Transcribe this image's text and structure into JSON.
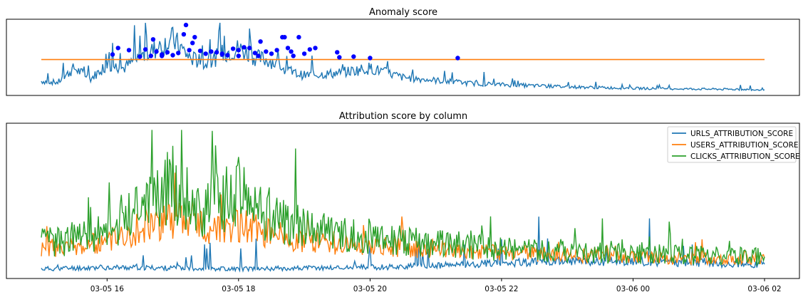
{
  "chart_data": [
    {
      "type": "line",
      "title": "Anomaly score",
      "xlabel": "",
      "ylabel": "",
      "x_range": [
        "2024-03-05 15:00",
        "2024-03-06 02:00"
      ],
      "yaxis_visible": false,
      "xaxis_ticks_visible": false,
      "ylim": [
        0,
        1
      ],
      "threshold": 0.47,
      "colors": {
        "score": "#1f77b4",
        "threshold": "#ff7f0e",
        "anomaly_marker": "#0000ff"
      },
      "series": [
        {
          "key": "score",
          "points": [
            [
              "03-05 15:00",
              0.17
            ],
            [
              "03-05 15:15",
              0.15
            ],
            [
              "03-05 15:30",
              0.35
            ],
            [
              "03-05 15:45",
              0.2
            ],
            [
              "03-05 16:00",
              0.4
            ],
            [
              "03-05 16:15",
              0.35
            ],
            [
              "03-05 16:30",
              0.5
            ],
            [
              "03-05 16:45",
              0.62
            ],
            [
              "03-05 17:00",
              0.75
            ],
            [
              "03-05 17:15",
              0.5
            ],
            [
              "03-05 17:30",
              0.4
            ],
            [
              "03-05 17:45",
              0.55
            ],
            [
              "03-05 18:00",
              0.62
            ],
            [
              "03-05 18:15",
              0.5
            ],
            [
              "03-05 18:30",
              0.45
            ],
            [
              "03-05 18:45",
              0.3
            ],
            [
              "03-05 19:00",
              0.25
            ],
            [
              "03-05 19:30",
              0.28
            ],
            [
              "03-05 20:00",
              0.35
            ],
            [
              "03-05 20:30",
              0.22
            ],
            [
              "03-05 21:00",
              0.18
            ],
            [
              "03-05 21:30",
              0.14
            ],
            [
              "03-05 22:00",
              0.12
            ],
            [
              "03-05 23:00",
              0.09
            ],
            [
              "03-06 00:00",
              0.07
            ],
            [
              "03-06 01:00",
              0.06
            ],
            [
              "03-06 02:00",
              0.05
            ]
          ]
        },
        {
          "key": "threshold",
          "points": [
            [
              "03-05 15:00",
              0.47
            ],
            [
              "03-06 02:00",
              0.47
            ]
          ]
        }
      ],
      "anomalies": [
        [
          "03-05 16:05",
          0.54
        ],
        [
          "03-05 16:10",
          0.63
        ],
        [
          "03-05 16:20",
          0.6
        ],
        [
          "03-05 16:35",
          0.61
        ],
        [
          "03-05 16:40",
          0.52
        ],
        [
          "03-05 16:42",
          0.75
        ],
        [
          "03-05 16:45",
          0.58
        ],
        [
          "03-05 16:50",
          0.54
        ],
        [
          "03-05 16:55",
          0.57
        ],
        [
          "03-05 17:00",
          0.53
        ],
        [
          "03-05 17:05",
          0.56
        ],
        [
          "03-05 17:10",
          0.82
        ],
        [
          "03-05 17:12",
          0.95
        ],
        [
          "03-05 17:15",
          0.6
        ],
        [
          "03-05 17:18",
          0.7
        ],
        [
          "03-05 17:20",
          0.78
        ],
        [
          "03-05 17:25",
          0.59
        ],
        [
          "03-05 17:30",
          0.55
        ],
        [
          "03-05 17:35",
          0.58
        ],
        [
          "03-05 17:40",
          0.57
        ],
        [
          "03-05 17:45",
          0.54
        ],
        [
          "03-05 17:50",
          0.53
        ],
        [
          "03-05 17:55",
          0.62
        ],
        [
          "03-05 18:00",
          0.6
        ],
        [
          "03-05 18:05",
          0.64
        ],
        [
          "03-05 18:10",
          0.63
        ],
        [
          "03-05 18:15",
          0.56
        ],
        [
          "03-05 18:18",
          0.52
        ],
        [
          "03-05 18:20",
          0.72
        ],
        [
          "03-05 18:25",
          0.58
        ],
        [
          "03-05 18:30",
          0.55
        ],
        [
          "03-05 18:35",
          0.6
        ],
        [
          "03-05 18:40",
          0.78
        ],
        [
          "03-05 18:42",
          0.78
        ],
        [
          "03-05 18:45",
          0.63
        ],
        [
          "03-05 18:48",
          0.58
        ],
        [
          "03-05 18:50",
          0.52
        ],
        [
          "03-05 18:55",
          0.78
        ],
        [
          "03-05 19:00",
          0.55
        ],
        [
          "03-05 19:05",
          0.61
        ],
        [
          "03-05 19:10",
          0.63
        ],
        [
          "03-05 19:30",
          0.57
        ],
        [
          "03-05 19:32",
          0.5
        ],
        [
          "03-05 20:00",
          0.49
        ],
        [
          "03-05 21:20",
          0.49
        ],
        [
          "03-05 19:45",
          0.51
        ],
        [
          "03-05 18:00",
          0.52
        ],
        [
          "03-05 17:45",
          0.55
        ],
        [
          "03-05 16:30",
          0.51
        ],
        [
          "03-05 16:50",
          0.52
        ]
      ]
    },
    {
      "type": "line",
      "title": "Attribution score by column",
      "xlabel": "",
      "ylabel": "",
      "yaxis_visible": false,
      "ylim": [
        0,
        1
      ],
      "legend": "top-right",
      "x_ticks": [
        "03-05 16",
        "03-05 18",
        "03-05 20",
        "03-05 22",
        "03-06 00",
        "03-06 02"
      ],
      "series": [
        {
          "name": "URLS_ATTRIBUTION_SCORE",
          "color": "#1f77b4",
          "points": [
            [
              "03-05 15:00",
              0.05
            ],
            [
              "03-05 16:00",
              0.06
            ],
            [
              "03-05 18:00",
              0.05
            ],
            [
              "03-05 20:00",
              0.06
            ],
            [
              "03-05 21:00",
              0.07
            ],
            [
              "03-05 22:00",
              0.09
            ],
            [
              "03-05 23:00",
              0.1
            ],
            [
              "03-06 00:00",
              0.1
            ],
            [
              "03-06 01:00",
              0.09
            ],
            [
              "03-06 02:00",
              0.08
            ]
          ]
        },
        {
          "name": "USERS_ATTRIBUTION_SCORE",
          "color": "#ff7f0e",
          "points": [
            [
              "03-05 15:00",
              0.18
            ],
            [
              "03-05 15:30",
              0.2
            ],
            [
              "03-05 16:00",
              0.22
            ],
            [
              "03-05 16:30",
              0.32
            ],
            [
              "03-05 17:00",
              0.38
            ],
            [
              "03-05 17:30",
              0.32
            ],
            [
              "03-05 18:00",
              0.35
            ],
            [
              "03-05 18:30",
              0.28
            ],
            [
              "03-05 19:00",
              0.24
            ],
            [
              "03-05 19:30",
              0.22
            ],
            [
              "03-05 20:00",
              0.2
            ],
            [
              "03-05 21:00",
              0.18
            ],
            [
              "03-05 22:00",
              0.16
            ],
            [
              "03-05 23:00",
              0.14
            ],
            [
              "03-06 00:00",
              0.13
            ],
            [
              "03-06 01:00",
              0.12
            ],
            [
              "03-06 02:00",
              0.12
            ]
          ]
        },
        {
          "name": "CLICKS_ATTRIBUTION_SCORE",
          "color": "#2ca02c",
          "points": [
            [
              "03-05 15:00",
              0.22
            ],
            [
              "03-05 15:30",
              0.25
            ],
            [
              "03-05 16:00",
              0.28
            ],
            [
              "03-05 16:30",
              0.5
            ],
            [
              "03-05 17:00",
              0.6
            ],
            [
              "03-05 17:30",
              0.45
            ],
            [
              "03-05 18:00",
              0.55
            ],
            [
              "03-05 18:30",
              0.4
            ],
            [
              "03-05 19:00",
              0.32
            ],
            [
              "03-05 19:30",
              0.28
            ],
            [
              "03-05 20:00",
              0.26
            ],
            [
              "03-05 21:00",
              0.22
            ],
            [
              "03-05 22:00",
              0.18
            ],
            [
              "03-05 23:00",
              0.16
            ],
            [
              "03-06 00:00",
              0.15
            ],
            [
              "03-06 01:00",
              0.14
            ],
            [
              "03-06 02:00",
              0.13
            ]
          ]
        }
      ]
    }
  ]
}
